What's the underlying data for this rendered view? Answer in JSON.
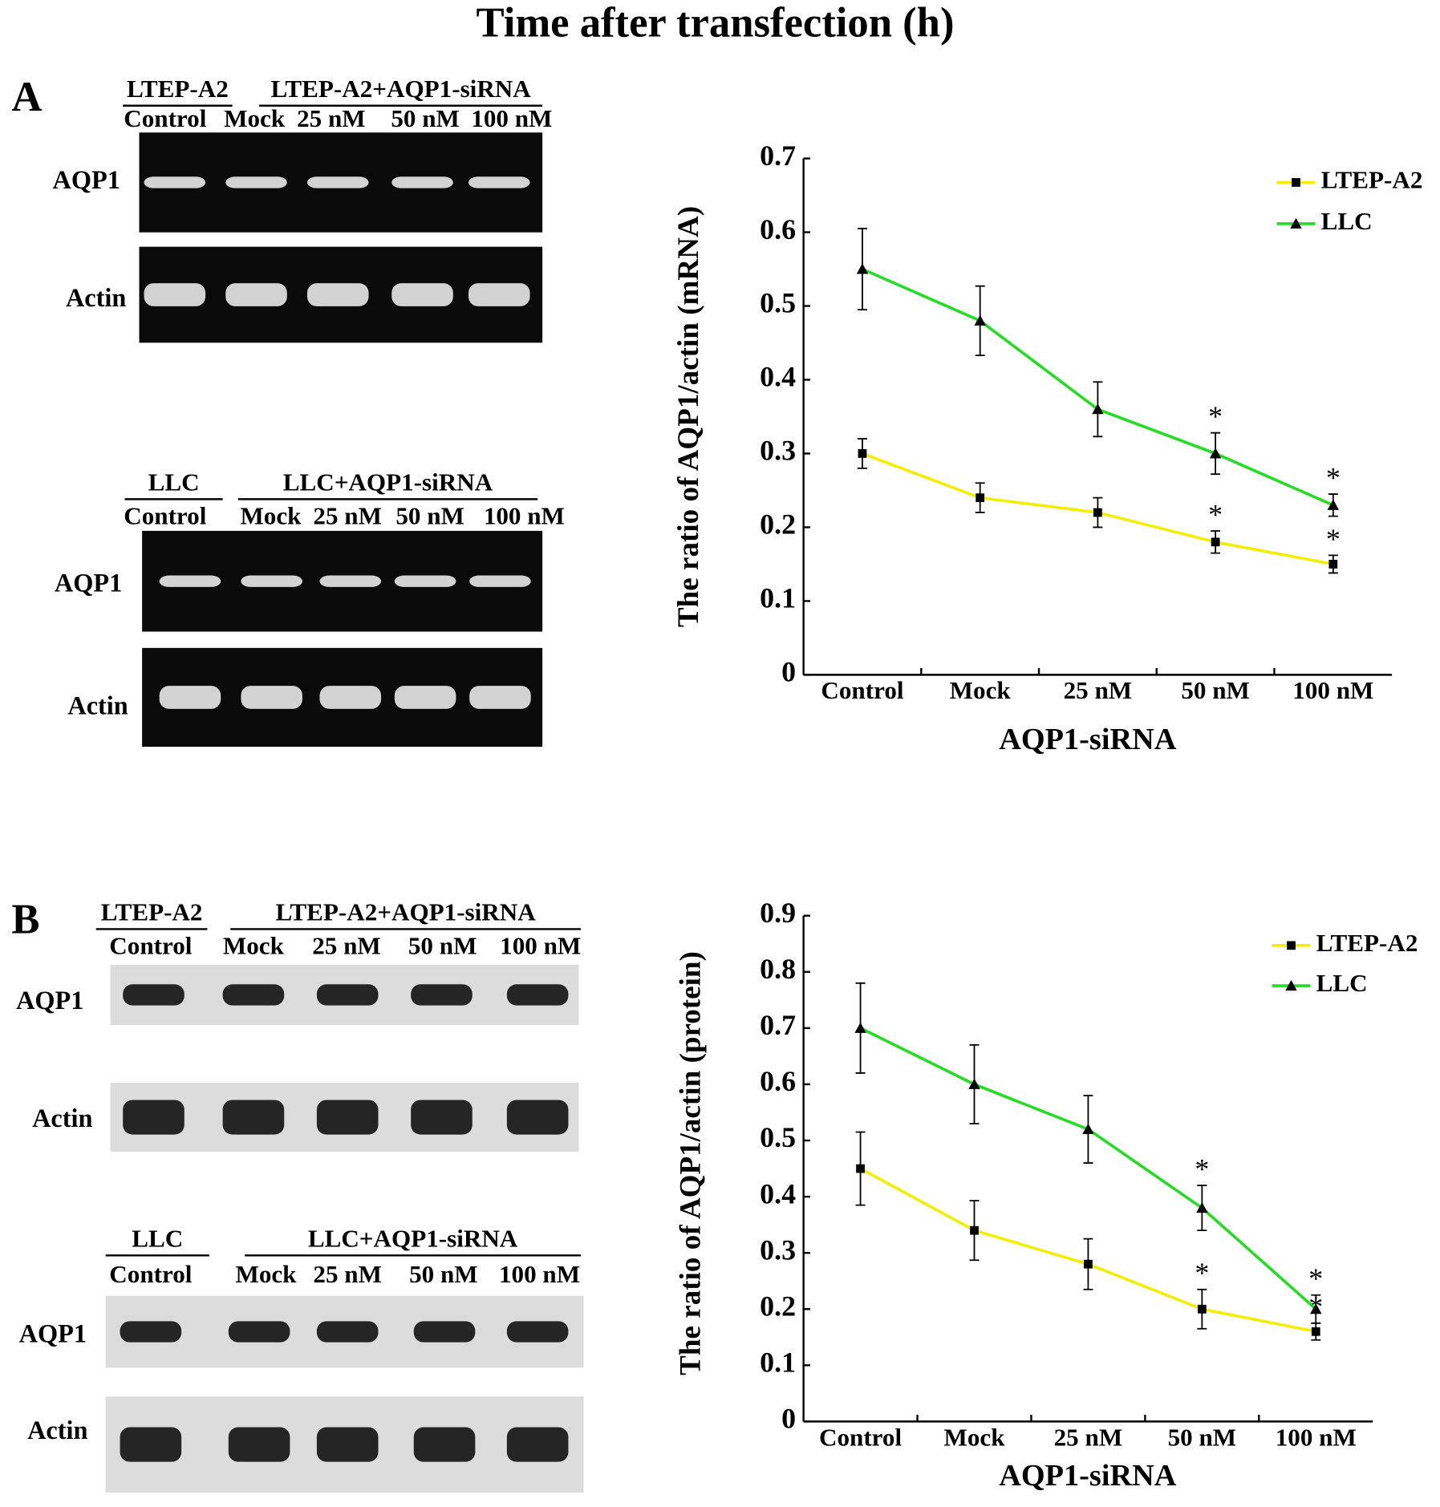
{
  "title": "Time after transfection (h)",
  "panels": [
    {
      "label": "A",
      "gels": [
        {
          "control_group": "LTEP-A2",
          "treated_group": "LTEP-A2+AQP1-siRNA",
          "lanes": [
            "Control",
            "Mock",
            "25 nM",
            "50 nM",
            "100 nM"
          ],
          "rows": [
            "AQP1",
            "Actin"
          ]
        },
        {
          "control_group": "LLC",
          "treated_group": "LLC+AQP1-siRNA",
          "lanes": [
            "Control",
            "Mock",
            "25 nM",
            "50 nM",
            "100 nM"
          ],
          "rows": [
            "AQP1",
            "Actin"
          ]
        }
      ]
    },
    {
      "label": "B",
      "gels": [
        {
          "control_group": "LTEP-A2",
          "treated_group": "LTEP-A2+AQP1-siRNA",
          "lanes": [
            "Control",
            "Mock",
            "25 nM",
            "50 nM",
            "100 nM"
          ],
          "rows": [
            "AQP1",
            "Actin"
          ]
        },
        {
          "control_group": "LLC",
          "treated_group": "LLC+AQP1-siRNA",
          "lanes": [
            "Control",
            "Mock",
            "25 nM",
            "50 nM",
            "100 nM"
          ],
          "rows": [
            "AQP1",
            "Actin"
          ]
        }
      ]
    }
  ],
  "chart_data": [
    {
      "type": "line",
      "y_label": "The ratio of AQP1/actin (mRNA)",
      "x_label": "AQP1-siRNA",
      "categories": [
        "Control",
        "Mock",
        "25 nM",
        "50 nM",
        "100 nM"
      ],
      "ylim": [
        0,
        0.7
      ],
      "yticks": [
        0,
        0.1,
        0.2,
        0.3,
        0.4,
        0.5,
        0.6,
        0.7
      ],
      "significance_label": "*",
      "series": [
        {
          "name": "LTEP-A2",
          "color": "#f2ee00",
          "marker": "square",
          "values": [
            0.3,
            0.24,
            0.22,
            0.18,
            0.15
          ],
          "errors": [
            0.02,
            0.02,
            0.02,
            0.015,
            0.012
          ],
          "significant": [
            false,
            false,
            false,
            true,
            true
          ]
        },
        {
          "name": "LLC",
          "color": "#22dd22",
          "marker": "triangle",
          "values": [
            0.55,
            0.48,
            0.36,
            0.3,
            0.23
          ],
          "errors": [
            0.055,
            0.047,
            0.037,
            0.028,
            0.015
          ],
          "significant": [
            false,
            false,
            false,
            true,
            true
          ]
        }
      ]
    },
    {
      "type": "line",
      "y_label": "The ratio of AQP1/actin (protein)",
      "x_label": "AQP1-siRNA",
      "categories": [
        "Control",
        "Mock",
        "25 nM",
        "50 nM",
        "100 nM"
      ],
      "ylim": [
        0,
        0.9
      ],
      "yticks": [
        0,
        0.1,
        0.2,
        0.3,
        0.4,
        0.5,
        0.6,
        0.7,
        0.8,
        0.9
      ],
      "significance_label": "*",
      "series": [
        {
          "name": "LTEP-A2",
          "color": "#f2ee00",
          "marker": "square",
          "values": [
            0.45,
            0.34,
            0.28,
            0.2,
            0.16
          ],
          "errors": [
            0.065,
            0.053,
            0.045,
            0.035,
            0.015
          ],
          "significant": [
            false,
            false,
            false,
            true,
            true
          ]
        },
        {
          "name": "LLC",
          "color": "#22dd22",
          "marker": "triangle",
          "values": [
            0.7,
            0.6,
            0.52,
            0.38,
            0.2
          ],
          "errors": [
            0.08,
            0.07,
            0.06,
            0.04,
            0.025
          ],
          "significant": [
            false,
            false,
            false,
            true,
            true
          ]
        }
      ]
    }
  ]
}
